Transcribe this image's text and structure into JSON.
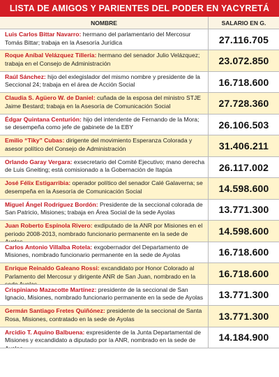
{
  "title": "LISTA DE AMIGOS Y PARIENTES DEL PODER EN YACYRETÁ",
  "columns": {
    "name": "NOMBRE",
    "salary": "SALARIO EN G."
  },
  "rows": [
    {
      "name": "Luis Carlos Bittar Navarro:",
      "desc": " hermano del parlamentario del Mercosur Tomás Bittar; trabaja en la Asesoría Jurídica",
      "salary": "27.116.705"
    },
    {
      "name": "Roque Aníbal Velázquez Tillería:",
      "desc": " hermano del senador Julio Velázquez; trabaja en el Consejo de Administración",
      "salary": "23.072.850"
    },
    {
      "name": "Raúl Sánchez:",
      "desc": " hijo del exlegislador del mismo nombre y presidente de la Seccional 24; trabaja en el área de Acción Social",
      "salary": "16.718.600"
    },
    {
      "name": "Claudia S. Agüero W. de Daniel:",
      "desc": " cuñada de la esposa del ministro STJE Jaime Bestard; trabaja en la Asesoría de Comunicación Social",
      "salary": "27.728.360"
    },
    {
      "name": "Édgar Quintana Centurión:",
      "desc": " hijo del intendente de Fernando de la Mora; se desempeña como jefe de gabinete de la EBY",
      "salary": "26.106.503"
    },
    {
      "name": "Emilio “Tiky” Cubas:",
      "desc": " dirigente del movimiento Esperanza Colorada y asesor político del Consejo de Administración",
      "salary": "31.406.211"
    },
    {
      "name": "Orlando Garay Vergara:",
      "desc": " exsecretario del Comité Ejecutivo; mano derecha de Luis Gneiting; está comisionado a la Gobernación de Itapúa",
      "salary": "26.117.002"
    },
    {
      "name": "José Félix Estigarribia:",
      "desc": " operador político del senador Calé Galaverna; se desempeña en la Asesoría de Comunicación Social",
      "salary": "14.598.600"
    },
    {
      "name": "Miguel Ángel Rodríguez Bordón:",
      "desc": " Presidente de la seccional colorada de San Patricio, Misiones; trabaja en Área Social de la sede Ayolas",
      "salary": "13.771.300"
    },
    {
      "name": "Juan Roberto Espínola Rivero:",
      "desc": " exdiputado de la ANR por Misiones en el periodo 2008-2013, nombrado funcionario permanente en la sede de Ayolas",
      "salary": "14.598.600"
    },
    {
      "name": "Carlos Antonio Villalba Rotela:",
      "desc": " exgobernador del Departamento de Misiones, nombrado funcionario permanente en la sede de Ayolas",
      "salary": "16.718.600"
    },
    {
      "name": "Enrique Reinaldo Galeano Rossi:",
      "desc": " excandidato por Honor Colorado al Parlamento del Mercosur y dirigente ANR de San Juan, nombrado en la sede Ayolas",
      "salary": "16.718.600"
    },
    {
      "name": "Crispiniano Mazacotte Martínez:",
      "desc": " presidente de la seccional de San Ignacio, Misiones, nombrado funcionario permanente en la sede de Ayolas",
      "salary": "13.771.300"
    },
    {
      "name": "Germán Santiago Fretes Quiñónez:",
      "desc": " presidente de la seccional de Santa Rosa, Misiones, contratado en la sede de Ayolas",
      "salary": "13.771.300"
    },
    {
      "name": "Arcidio T. Aquino Balbuena:",
      "desc": " expresidente de la Junta Departamental de Misiones y excandidato a diputado por la ANR, nombrado en la sede de Ayolas",
      "salary": "14.184.900"
    }
  ]
}
